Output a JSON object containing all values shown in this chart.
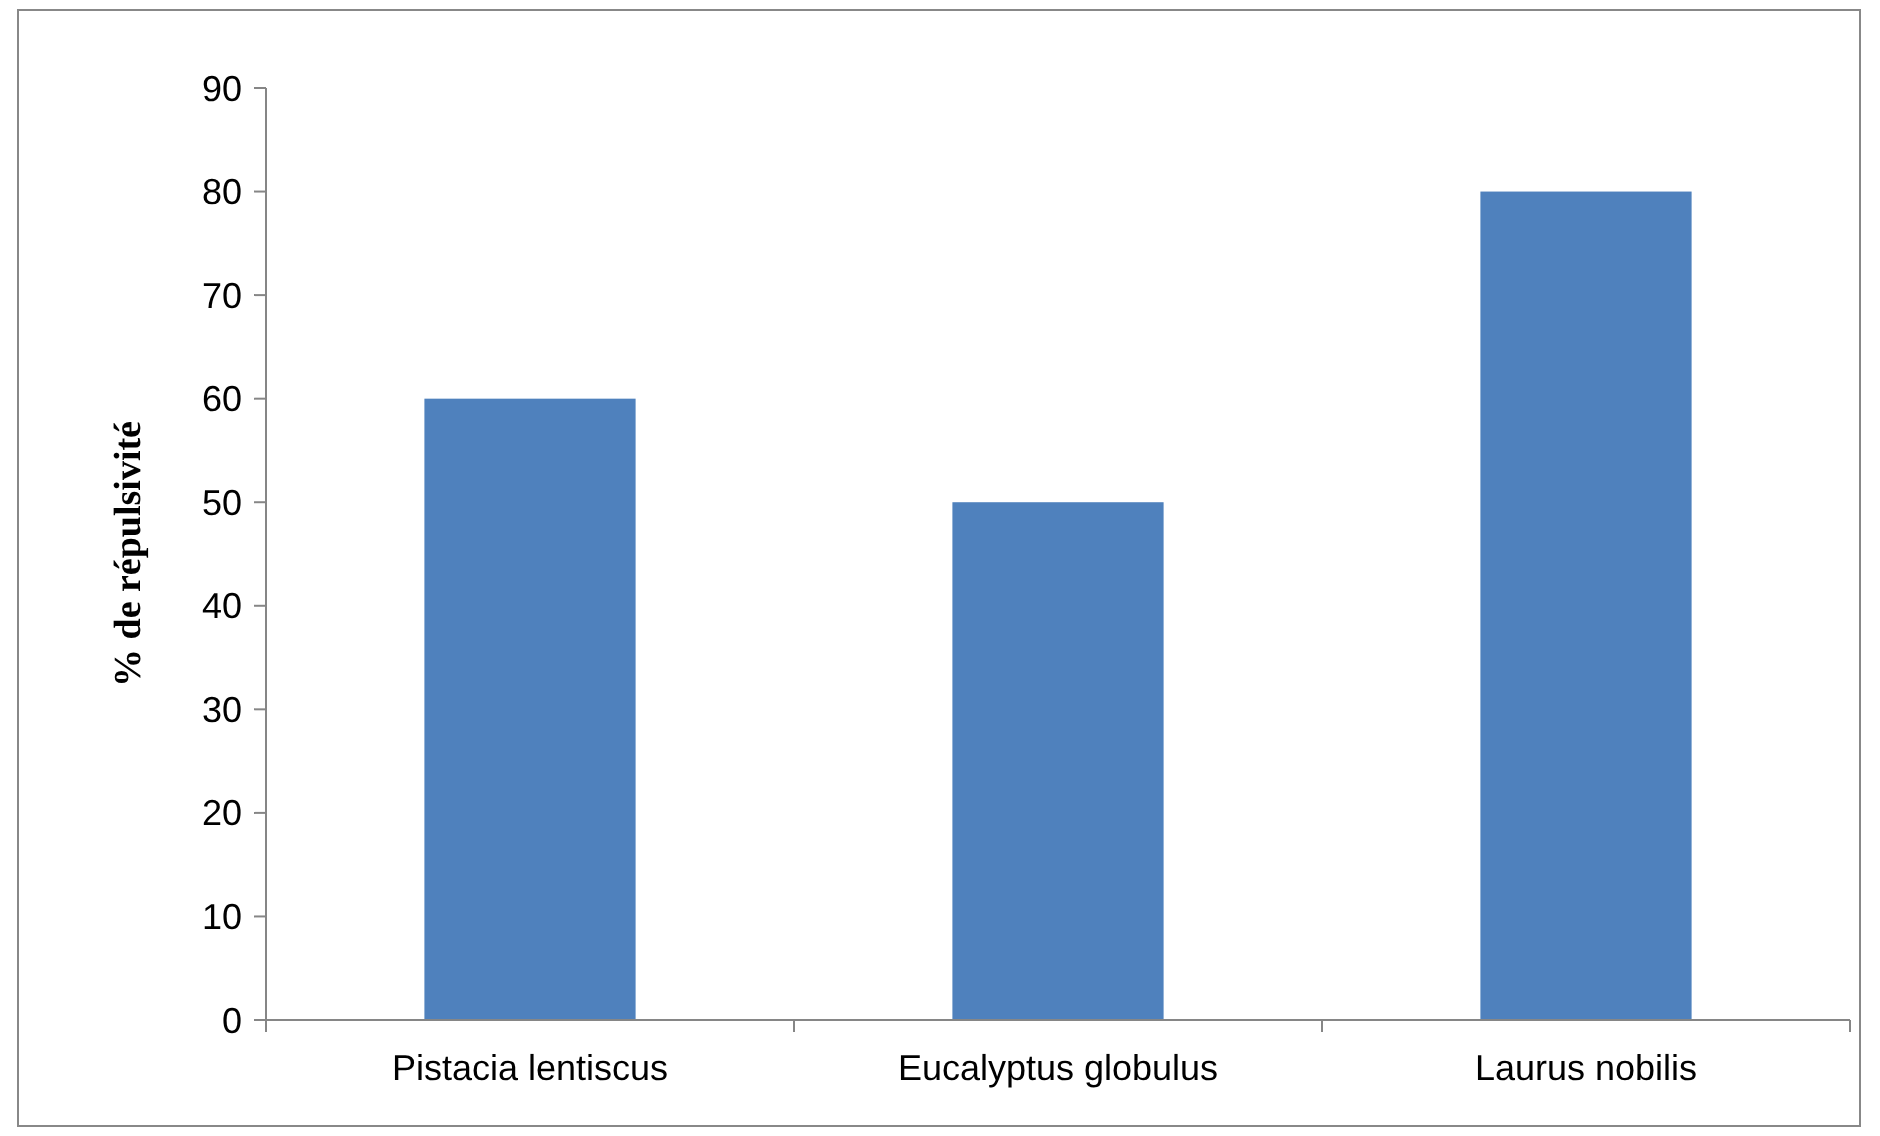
{
  "chart_data": {
    "type": "bar",
    "ylabel": "% de répulsivité",
    "categories": [
      "Pistacia lentiscus",
      "Eucalyptus globulus",
      "Laurus nobilis"
    ],
    "values": [
      60,
      50,
      80
    ],
    "color": "#4f81bd",
    "ylim": [
      0,
      90
    ],
    "yticks": [
      0,
      10,
      20,
      30,
      40,
      50,
      60,
      70,
      80,
      90
    ],
    "grid": false
  }
}
